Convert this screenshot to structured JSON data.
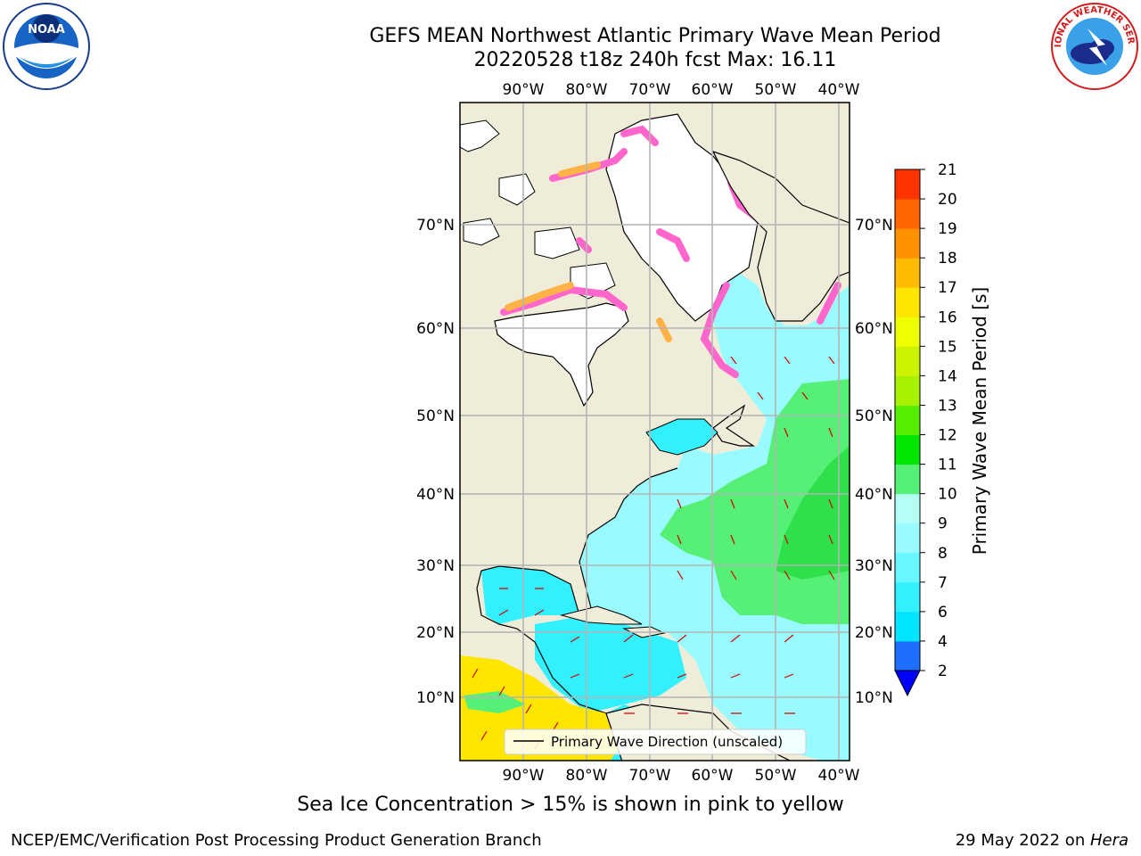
{
  "title_line1": "GEFS MEAN Northwest Atlantic Primary Wave Mean Period",
  "title_line2": "20220528 t18z 240h fcst   Max: 16.11",
  "logos": {
    "left": {
      "icon": "noaa-logo",
      "text": "NOAA"
    },
    "right": {
      "icon": "nws-logo",
      "text": "NATIONAL WEATHER SERVICE"
    }
  },
  "map": {
    "lon_ticks": [
      "90°W",
      "80°W",
      "70°W",
      "60°W",
      "50°W",
      "40°W"
    ],
    "lat_ticks": [
      "10°N",
      "20°N",
      "30°N",
      "40°N",
      "50°N",
      "60°N",
      "70°N"
    ],
    "legend": "Primary Wave Direction (unscaled)"
  },
  "colorbar": {
    "label": "Primary Wave Mean Period [s]",
    "ticks": [
      "2",
      "4",
      "6",
      "7",
      "8",
      "9",
      "10",
      "11",
      "12",
      "13",
      "14",
      "15",
      "16",
      "17",
      "18",
      "19",
      "20",
      "21"
    ],
    "colors": [
      "#1f6fff",
      "#00e5ff",
      "#33f0ff",
      "#66f7ff",
      "#99fbff",
      "#b3fff5",
      "#55f075",
      "#00e600",
      "#55ee00",
      "#a6f000",
      "#ccf200",
      "#eeff00",
      "#ffe600",
      "#ffbb00",
      "#ff9000",
      "#ff6600",
      "#ff3300",
      "#ff0000"
    ],
    "extend_color": "#0000ff"
  },
  "caption": "Sea Ice Concentration > 15% is shown in pink to yellow",
  "footer_left": "NCEP/EMC/Verification Post Processing Product Generation Branch",
  "footer_right_date": "29 May 2022 on ",
  "footer_right_machine": "Hera"
}
